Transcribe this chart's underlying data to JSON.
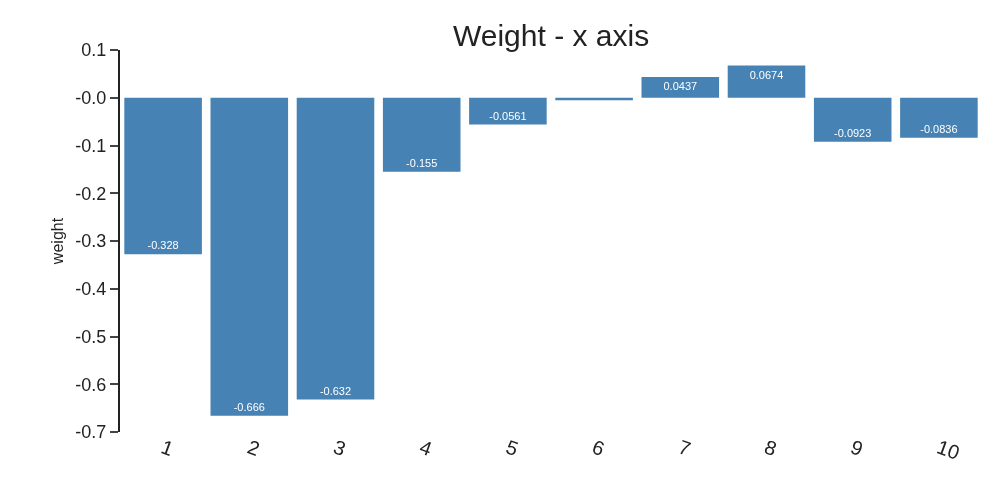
{
  "chart_data": {
    "type": "bar",
    "title": "Weight - x axis",
    "ylabel": "weight",
    "categories": [
      "1",
      "2",
      "3",
      "4",
      "5",
      "6",
      "7",
      "8",
      "9",
      "10"
    ],
    "values": [
      -0.328,
      -0.666,
      -0.632,
      -0.155,
      -0.0561,
      -0.005,
      0.0437,
      0.0674,
      -0.0923,
      -0.0836
    ],
    "value_labels": [
      "-0.328",
      "-0.666",
      "-0.632",
      "-0.155",
      "-0.0561",
      null,
      "0.0437",
      "0.0674",
      "-0.0923",
      "-0.0836"
    ],
    "color": "#4682b4",
    "ylim": [
      -0.7,
      0.1
    ],
    "yticks": [
      0.1,
      {
        "value": 0,
        "label": "-0.0"
      },
      -0.1,
      -0.2,
      -0.3,
      -0.4,
      -0.5,
      -0.6,
      -0.7
    ]
  }
}
